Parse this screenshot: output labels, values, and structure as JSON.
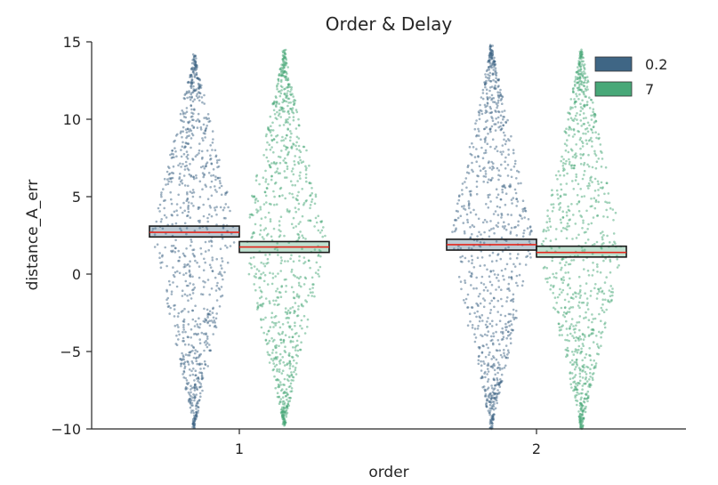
{
  "chart_data": {
    "type": "scatter",
    "subtype": "strip / swarm with confidence boxes",
    "title": "Order & Delay",
    "xlabel": "order",
    "ylabel": "distance_A_err",
    "categories": [
      "1",
      "2"
    ],
    "ylim": [
      -10,
      15
    ],
    "yticks": [
      -10,
      -5,
      0,
      5,
      10,
      15
    ],
    "ytick_labels": [
      "−10",
      "−5",
      "0",
      "5",
      "10",
      "15"
    ],
    "grid": false,
    "legend_position": "top-right",
    "colors": {
      "0.2": "#3f6685",
      "7": "#48a878",
      "mean_line": "#e3261c",
      "box_edge": "#1a1a1a"
    },
    "series": [
      {
        "name": "0.2",
        "groups": [
          {
            "category": "1",
            "mean": 2.7,
            "ci": [
              2.4,
              3.1
            ],
            "range": [
              -10,
              14.2
            ],
            "spread_center": 2.7
          },
          {
            "category": "2",
            "mean": 1.9,
            "ci": [
              1.55,
              2.25
            ],
            "range": [
              -10,
              14.8
            ],
            "spread_center": 2.0
          }
        ]
      },
      {
        "name": "7",
        "groups": [
          {
            "category": "1",
            "mean": 1.75,
            "ci": [
              1.4,
              2.1
            ],
            "range": [
              -9.8,
              14.5
            ],
            "spread_center": 2.0
          },
          {
            "category": "2",
            "mean": 1.4,
            "ci": [
              1.1,
              1.8
            ],
            "range": [
              -10,
              14.6
            ],
            "spread_center": 1.5
          }
        ]
      }
    ]
  }
}
